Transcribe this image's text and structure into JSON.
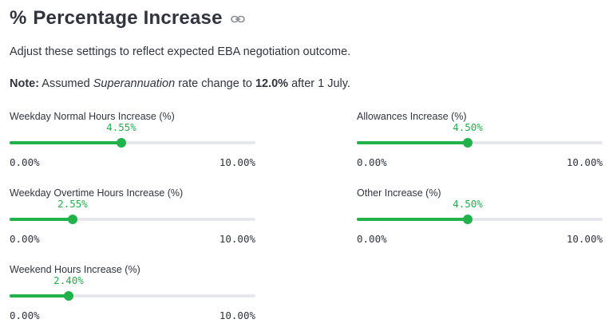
{
  "header": {
    "icon": "%",
    "title": "Percentage Increase",
    "link_icon": "link-icon"
  },
  "description": "Adjust these settings to reflect expected EBA negotiation outcome.",
  "note": {
    "label": "Note:",
    "text_before": " Assumed ",
    "emphasis": "Superannuation",
    "text_middle": " rate change to ",
    "rate": "12.0%",
    "text_after": " after 1 July."
  },
  "accent_color": "#21b24b",
  "sliders": {
    "weekday_normal": {
      "label": "Weekday Normal Hours Increase (%)",
      "value": 4.55,
      "value_label": "4.55%",
      "min": 0,
      "max": 10,
      "min_label": "0.00%",
      "max_label": "10.00%"
    },
    "weekday_overtime": {
      "label": "Weekday Overtime Hours Increase (%)",
      "value": 2.55,
      "value_label": "2.55%",
      "min": 0,
      "max": 10,
      "min_label": "0.00%",
      "max_label": "10.00%"
    },
    "weekend": {
      "label": "Weekend Hours Increase (%)",
      "value": 2.4,
      "value_label": "2.40%",
      "min": 0,
      "max": 10,
      "min_label": "0.00%",
      "max_label": "10.00%"
    },
    "allowances": {
      "label": "Allowances Increase (%)",
      "value": 4.5,
      "value_label": "4.50%",
      "min": 0,
      "max": 10,
      "min_label": "0.00%",
      "max_label": "10.00%"
    },
    "other": {
      "label": "Other Increase (%)",
      "value": 4.5,
      "value_label": "4.50%",
      "min": 0,
      "max": 10,
      "min_label": "0.00%",
      "max_label": "10.00%"
    }
  }
}
